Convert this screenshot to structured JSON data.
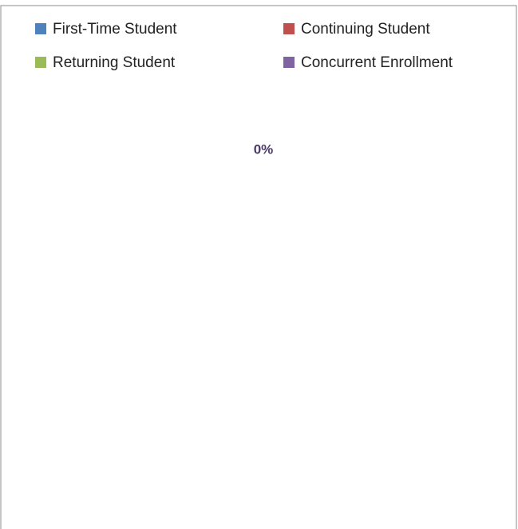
{
  "chart_data": {
    "type": "pie",
    "categories": [
      "First-Time Student",
      "Continuing Student",
      "Returning Student",
      "Concurrent Enrollment"
    ],
    "values": [
      0,
      0,
      0,
      0
    ],
    "value_labels": [
      null,
      null,
      null,
      "0%"
    ],
    "colors": [
      "#4f81bd",
      "#c0504d",
      "#9bbb59",
      "#8064a2"
    ]
  }
}
